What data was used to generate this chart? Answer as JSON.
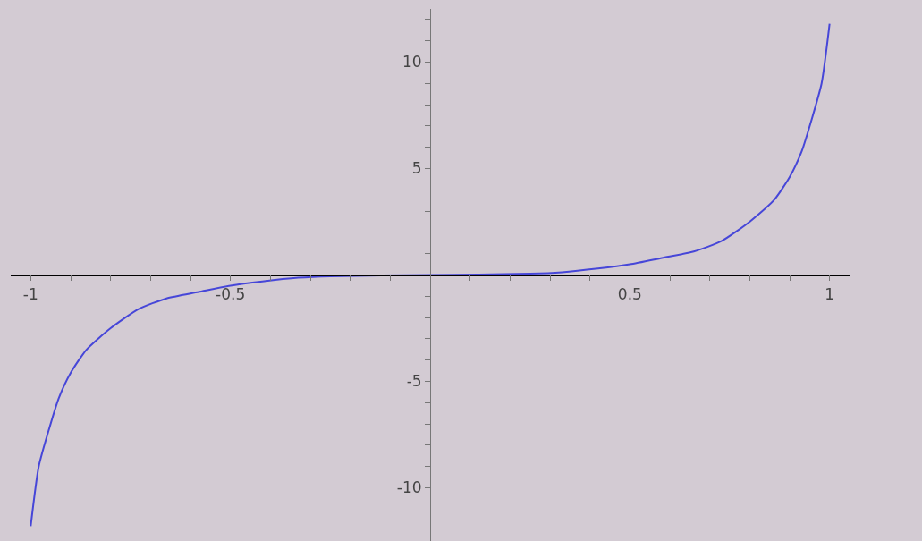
{
  "chart_data": {
    "type": "line",
    "xlim": [
      -1.05,
      1.05
    ],
    "ylim": [
      -12.5,
      12.5
    ],
    "xticks": [
      -1,
      {
        "value": -0.9,
        "label": null
      },
      {
        "value": -0.8,
        "label": null
      },
      {
        "value": -0.7,
        "label": null
      },
      {
        "value": -0.6,
        "label": null
      },
      -0.5,
      {
        "value": -0.4,
        "label": null
      },
      {
        "value": -0.3,
        "label": null
      },
      {
        "value": -0.2,
        "label": null
      },
      {
        "value": -0.1,
        "label": null
      },
      {
        "value": 0.1,
        "label": null
      },
      {
        "value": 0.2,
        "label": null
      },
      {
        "value": 0.3,
        "label": null
      },
      {
        "value": 0.4,
        "label": null
      },
      0.5,
      {
        "value": 0.6,
        "label": null
      },
      {
        "value": 0.7,
        "label": null
      },
      {
        "value": 0.8,
        "label": null
      },
      {
        "value": 0.9,
        "label": null
      },
      1
    ],
    "yticks": [
      -10,
      {
        "value": -9,
        "label": null
      },
      {
        "value": -8,
        "label": null
      },
      {
        "value": -7,
        "label": null
      },
      {
        "value": -6,
        "label": null
      },
      -5,
      {
        "value": -4,
        "label": null
      },
      {
        "value": -3,
        "label": null
      },
      {
        "value": -2,
        "label": null
      },
      {
        "value": -1,
        "label": null
      },
      {
        "value": 1,
        "label": null
      },
      {
        "value": 2,
        "label": null
      },
      {
        "value": 3,
        "label": null
      },
      {
        "value": 4,
        "label": null
      },
      5,
      {
        "value": 6,
        "label": null
      },
      {
        "value": 7,
        "label": null
      },
      {
        "value": 8,
        "label": null
      },
      {
        "value": 9,
        "label": null
      },
      10,
      {
        "value": 11,
        "label": null
      },
      {
        "value": 12,
        "label": null
      }
    ],
    "grid": false,
    "marker": "none",
    "line_style": "solid",
    "series": [
      {
        "color": "#4646d8",
        "x": [
          -1.0,
          -0.98,
          -0.955,
          -0.93,
          -0.9,
          -0.86,
          -0.8,
          -0.73,
          -0.66,
          -0.58,
          -0.5,
          -0.42,
          -0.33,
          -0.25,
          0,
          0.25,
          0.33,
          0.42,
          0.5,
          0.58,
          0.66,
          0.73,
          0.8,
          0.86,
          0.9,
          0.93,
          0.955,
          0.98,
          1.0
        ],
        "values": [
          -11.8,
          -9.0,
          -7.3,
          -5.8,
          -4.6,
          -3.5,
          -2.5,
          -1.6,
          -1.1,
          -0.8,
          -0.5,
          -0.3,
          -0.13,
          -0.06,
          0,
          0.06,
          0.13,
          0.3,
          0.5,
          0.8,
          1.1,
          1.6,
          2.5,
          3.5,
          4.6,
          5.8,
          7.3,
          9.0,
          11.8
        ]
      }
    ]
  }
}
